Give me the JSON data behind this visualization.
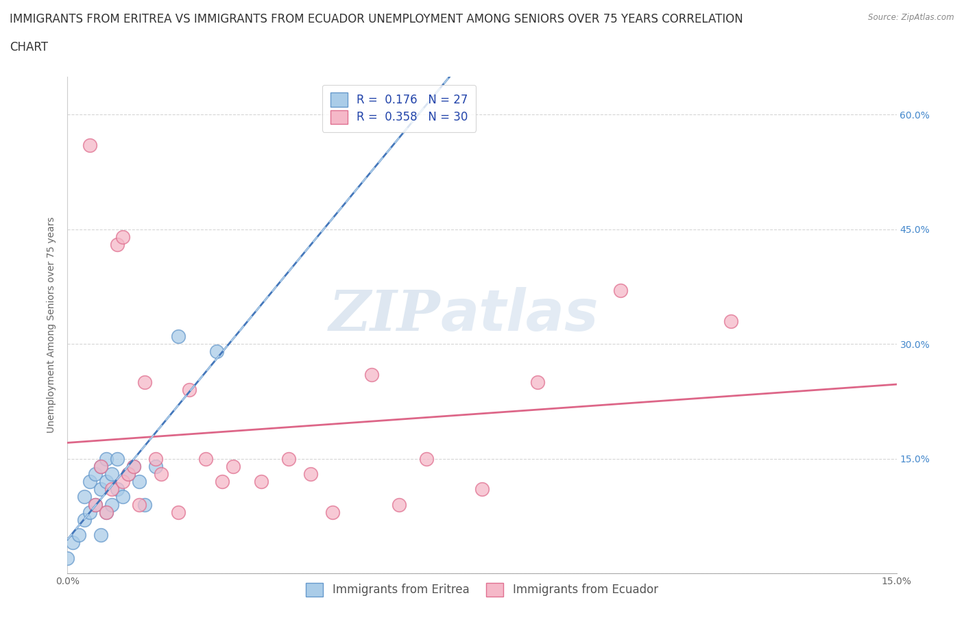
{
  "title_line1": "IMMIGRANTS FROM ERITREA VS IMMIGRANTS FROM ECUADOR UNEMPLOYMENT AMONG SENIORS OVER 75 YEARS CORRELATION",
  "title_line2": "CHART",
  "source": "Source: ZipAtlas.com",
  "ylabel": "Unemployment Among Seniors over 75 years",
  "xlim": [
    0.0,
    0.15
  ],
  "ylim": [
    0.0,
    0.65
  ],
  "xticks": [
    0.0,
    0.025,
    0.05,
    0.075,
    0.1,
    0.125,
    0.15
  ],
  "yticks": [
    0.0,
    0.15,
    0.3,
    0.45,
    0.6
  ],
  "grid_color": "#cccccc",
  "background_color": "#ffffff",
  "eritrea_color": "#aacce8",
  "ecuador_color": "#f5b8c8",
  "eritrea_edge": "#6699cc",
  "ecuador_edge": "#e07090",
  "R_eritrea": 0.176,
  "N_eritrea": 27,
  "R_ecuador": 0.358,
  "N_ecuador": 30,
  "eritrea_line_color": "#4477bb",
  "ecuador_line_color": "#dd6688",
  "eritrea_dash_color": "#aacce8",
  "eritrea_points_x": [
    0.0,
    0.001,
    0.002,
    0.003,
    0.003,
    0.004,
    0.004,
    0.005,
    0.005,
    0.006,
    0.006,
    0.006,
    0.007,
    0.007,
    0.007,
    0.008,
    0.008,
    0.009,
    0.009,
    0.01,
    0.011,
    0.012,
    0.013,
    0.014,
    0.016,
    0.02,
    0.027
  ],
  "eritrea_points_y": [
    0.02,
    0.04,
    0.05,
    0.07,
    0.1,
    0.08,
    0.12,
    0.09,
    0.13,
    0.05,
    0.11,
    0.14,
    0.08,
    0.12,
    0.15,
    0.09,
    0.13,
    0.11,
    0.15,
    0.1,
    0.13,
    0.14,
    0.12,
    0.09,
    0.14,
    0.31,
    0.29
  ],
  "ecuador_points_x": [
    0.004,
    0.005,
    0.006,
    0.007,
    0.008,
    0.009,
    0.01,
    0.01,
    0.011,
    0.012,
    0.013,
    0.014,
    0.016,
    0.017,
    0.02,
    0.022,
    0.025,
    0.028,
    0.03,
    0.035,
    0.04,
    0.044,
    0.048,
    0.055,
    0.06,
    0.065,
    0.075,
    0.085,
    0.1,
    0.12
  ],
  "ecuador_points_y": [
    0.56,
    0.09,
    0.14,
    0.08,
    0.11,
    0.43,
    0.44,
    0.12,
    0.13,
    0.14,
    0.09,
    0.25,
    0.15,
    0.13,
    0.08,
    0.24,
    0.15,
    0.12,
    0.14,
    0.12,
    0.15,
    0.13,
    0.08,
    0.26,
    0.09,
    0.15,
    0.11,
    0.25,
    0.37,
    0.33
  ],
  "watermark_zip": "ZIP",
  "watermark_atlas": "atlas",
  "title_fontsize": 12,
  "axis_label_fontsize": 10,
  "tick_fontsize": 10,
  "legend_fontsize": 12,
  "tick_color": "#4488cc",
  "ytick_color_right": "#4488cc"
}
